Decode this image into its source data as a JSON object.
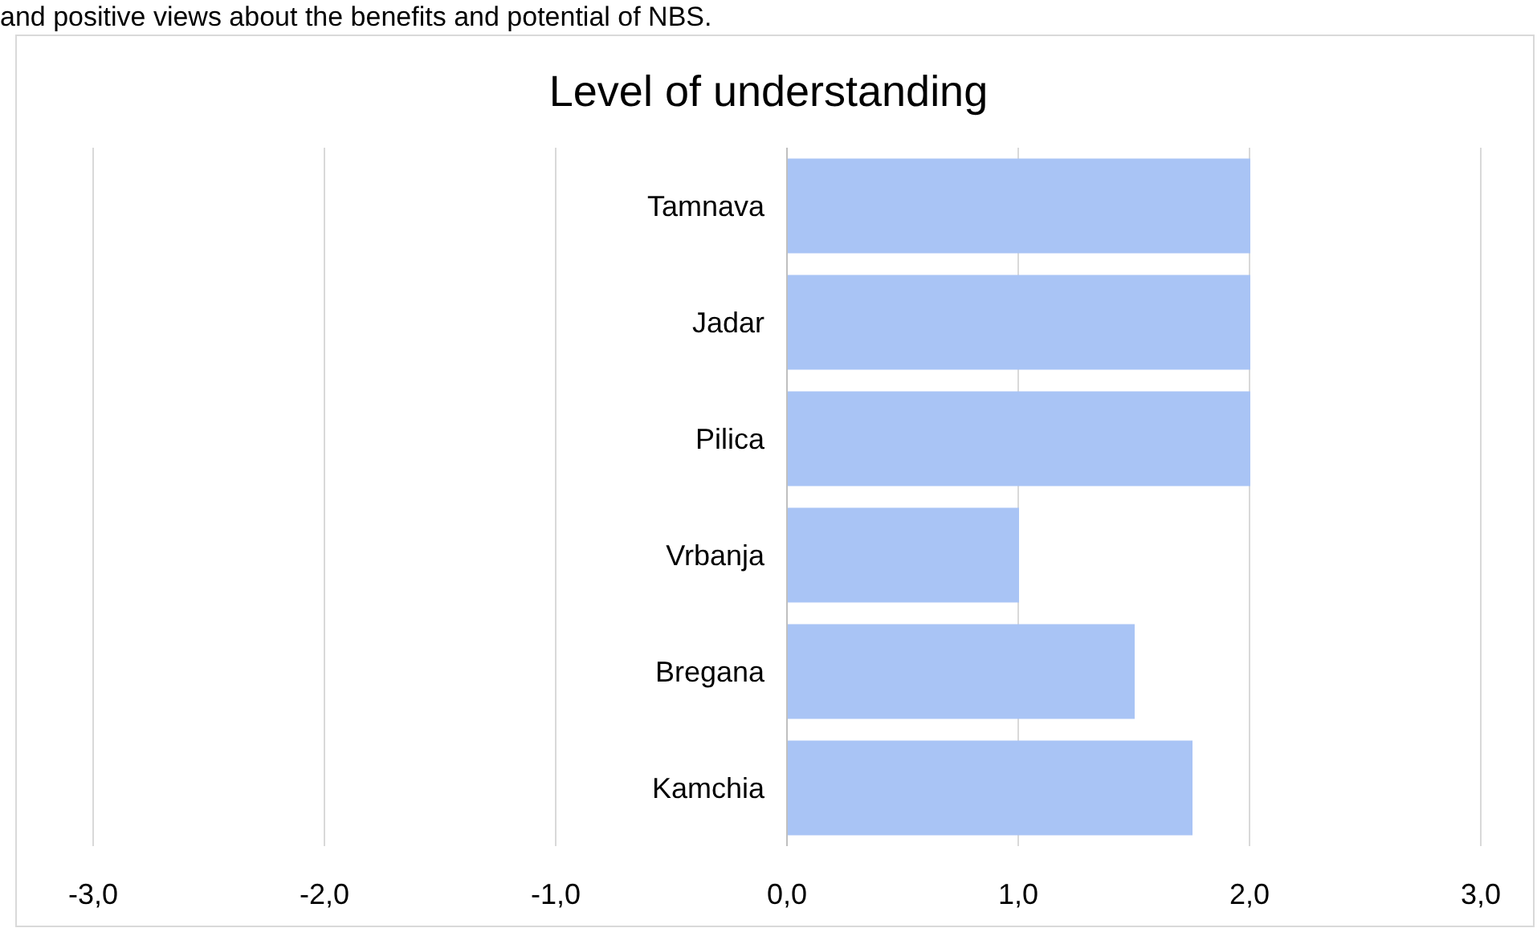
{
  "chart_data": {
    "type": "bar",
    "orientation": "horizontal",
    "title": "Level of understanding",
    "annotations": [
      "and positive views about the benefits and potential of NBS."
    ],
    "categories": [
      "Tamnava",
      "Jadar",
      "Pilica",
      "Vrbanja",
      "Bregana",
      "Kamchia"
    ],
    "values": [
      2,
      2,
      2,
      1,
      1.5,
      1.75
    ],
    "color": "#a9c4f5",
    "xlim": [
      -3,
      3
    ],
    "xticks": [
      {
        "value": -3,
        "label": "-3,0"
      },
      {
        "value": -2,
        "label": "-2,0"
      },
      {
        "value": -1,
        "label": "-1,0"
      },
      {
        "value": 0,
        "label": "0,0"
      },
      {
        "value": 1,
        "label": "1,0"
      },
      {
        "value": 2,
        "label": "2,0"
      },
      {
        "value": 3,
        "label": "3,0"
      }
    ],
    "grid": "x"
  }
}
